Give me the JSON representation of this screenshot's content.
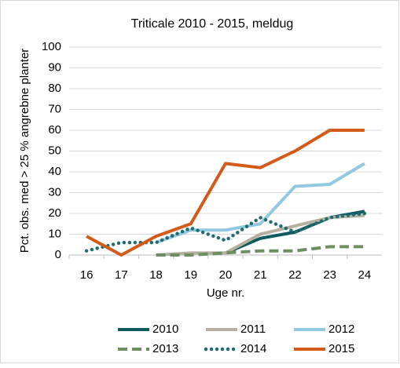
{
  "chart_data": {
    "type": "line",
    "title": "Triticale 2010 - 2015, meldug",
    "y_label": "Pct. obs. med > 25 % angrebne planter",
    "x_label": "Uge nr.",
    "categories": [
      "16",
      "17",
      "18",
      "19",
      "20",
      "21",
      "22",
      "23",
      "24"
    ],
    "ylim": [
      0,
      100
    ],
    "yticks": [
      0,
      10,
      20,
      30,
      40,
      50,
      60,
      70,
      80,
      90,
      100
    ],
    "grid": true,
    "legend": "bottom",
    "series": [
      {
        "name": "2010",
        "color": "#0f5a5e",
        "style": "solid",
        "values": [
          null,
          null,
          null,
          null,
          1,
          8,
          11,
          18,
          21
        ]
      },
      {
        "name": "2011",
        "color": "#b5b09f",
        "style": "solid",
        "values": [
          null,
          null,
          0,
          1,
          1,
          10,
          14,
          18,
          19
        ]
      },
      {
        "name": "2012",
        "color": "#92c8e0",
        "style": "solid",
        "values": [
          null,
          null,
          6,
          12,
          12,
          15,
          33,
          34,
          44
        ]
      },
      {
        "name": "2013",
        "color": "#6e8f62",
        "style": "dashed",
        "values": [
          null,
          null,
          0,
          0,
          1,
          2,
          2,
          4,
          4
        ]
      },
      {
        "name": "2014",
        "color": "#1f6b72",
        "style": "dotted",
        "values": [
          2,
          6,
          6,
          13,
          7,
          18,
          11,
          18,
          20
        ]
      },
      {
        "name": "2015",
        "color": "#d45a1a",
        "style": "solid",
        "values": [
          9,
          0,
          9,
          15,
          44,
          42,
          50,
          60,
          60
        ]
      }
    ]
  }
}
